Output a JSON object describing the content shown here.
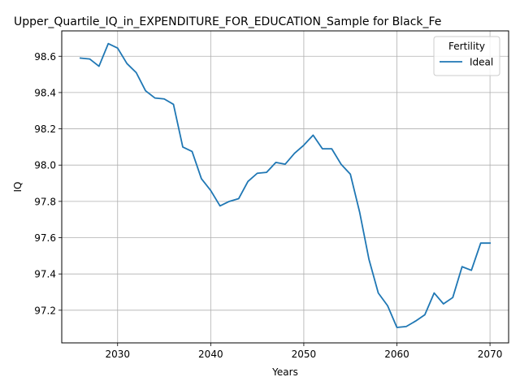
{
  "chart_data": {
    "type": "line",
    "title": "Upper_Quartile_IQ_in_EXPENDITURE_FOR_EDUCATION_Sample for Black_Fe",
    "xlabel": "Years",
    "ylabel": "IQ",
    "xlim": [
      2024,
      2072
    ],
    "ylim": [
      97.02,
      98.74
    ],
    "xticks": [
      2030,
      2040,
      2050,
      2060,
      2070
    ],
    "yticks": [
      97.2,
      97.4,
      97.6,
      97.8,
      98.0,
      98.2,
      98.4,
      98.6
    ],
    "ytick_labels": [
      "97.2",
      "97.4",
      "97.6",
      "97.8",
      "98.0",
      "98.2",
      "98.4",
      "98.6"
    ],
    "grid": true,
    "legend": {
      "title": "Fertility",
      "placement": "top-right"
    },
    "series": [
      {
        "name": "Ideal",
        "color": "#1f77b4",
        "x": [
          2026,
          2027,
          2028,
          2029,
          2030,
          2031,
          2032,
          2033,
          2034,
          2035,
          2036,
          2037,
          2038,
          2039,
          2040,
          2041,
          2042,
          2043,
          2044,
          2045,
          2046,
          2047,
          2048,
          2049,
          2050,
          2051,
          2052,
          2053,
          2054,
          2055,
          2056,
          2057,
          2058,
          2059,
          2060,
          2061,
          2062,
          2063,
          2064,
          2065,
          2066,
          2067,
          2068,
          2069,
          2070
        ],
        "y": [
          98.59,
          98.585,
          98.545,
          98.67,
          98.645,
          98.56,
          98.51,
          98.41,
          98.37,
          98.365,
          98.335,
          98.1,
          98.075,
          97.925,
          97.86,
          97.775,
          97.8,
          97.815,
          97.91,
          97.955,
          97.96,
          98.015,
          98.005,
          98.065,
          98.11,
          98.165,
          98.09,
          98.09,
          98.005,
          97.95,
          97.74,
          97.48,
          97.295,
          97.225,
          97.105,
          97.11,
          97.14,
          97.175,
          97.295,
          97.235,
          97.27,
          97.44,
          97.42,
          97.57,
          97.57
        ]
      }
    ]
  }
}
